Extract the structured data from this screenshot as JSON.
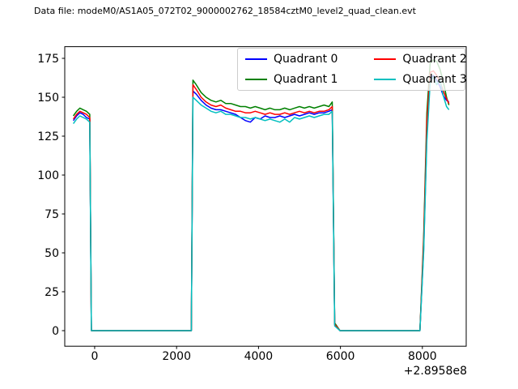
{
  "title": "Data file: modeM0/AS1A05_072T02_9000002762_18584cztM0_level2_quad_clean.evt",
  "chart_data": {
    "type": "line",
    "title": "Data file: modeM0/AS1A05_072T02_9000002762_18584cztM0_level2_quad_clean.evt",
    "xlabel": "",
    "ylabel": "",
    "x_offset_label": "+2.8958e8",
    "xlim": [
      -730,
      9070
    ],
    "ylim": [
      -10,
      182.5
    ],
    "xticks": [
      0,
      2000,
      4000,
      6000,
      8000
    ],
    "yticks": [
      0,
      25,
      50,
      75,
      100,
      125,
      150,
      175
    ],
    "grid": false,
    "legend_position": "upper right",
    "legend_columns": 2,
    "x": [
      -520,
      -440,
      -360,
      -280,
      -200,
      -120,
      -80,
      300,
      700,
      1100,
      1500,
      1900,
      2300,
      2360,
      2400,
      2480,
      2600,
      2720,
      2840,
      2960,
      3080,
      3200,
      3320,
      3440,
      3560,
      3680,
      3800,
      3920,
      4040,
      4160,
      4280,
      4400,
      4520,
      4640,
      4760,
      4880,
      5000,
      5120,
      5240,
      5360,
      5480,
      5600,
      5720,
      5800,
      5860,
      5990,
      6300,
      6700,
      7100,
      7500,
      7940,
      8030,
      8110,
      8190,
      8270,
      8350,
      8430,
      8510,
      8590,
      8650
    ],
    "series": [
      {
        "name": "Quadrant 0",
        "color": "#0000ff",
        "values": [
          135,
          138,
          140,
          139,
          137,
          136,
          0,
          0,
          0,
          0,
          0,
          0,
          0,
          0,
          154,
          152,
          148,
          145,
          143,
          142,
          142,
          141,
          140,
          139,
          137,
          135,
          134,
          137,
          136,
          138,
          137,
          137,
          138,
          137,
          138,
          139,
          138,
          139,
          140,
          139,
          140,
          140,
          141,
          142,
          4,
          0,
          0,
          0,
          0,
          0,
          0,
          52,
          126,
          162,
          164,
          161,
          157,
          151,
          148,
          147
        ]
      },
      {
        "name": "Quadrant 1",
        "color": "#008000",
        "values": [
          138,
          141,
          143,
          142,
          141,
          139,
          0,
          0,
          0,
          0,
          0,
          0,
          0,
          0,
          161,
          158,
          153,
          150,
          148,
          147,
          148,
          146,
          146,
          145,
          144,
          144,
          143,
          144,
          143,
          142,
          143,
          142,
          142,
          143,
          142,
          143,
          144,
          143,
          144,
          143,
          144,
          145,
          144,
          147,
          5,
          0,
          0,
          0,
          0,
          0,
          0,
          60,
          140,
          172,
          174,
          173,
          168,
          160,
          150,
          145
        ]
      },
      {
        "name": "Quadrant 2",
        "color": "#ff0000",
        "values": [
          136,
          139,
          141,
          140,
          139,
          137,
          0,
          0,
          0,
          0,
          0,
          0,
          0,
          0,
          158,
          155,
          150,
          147,
          145,
          144,
          145,
          143,
          142,
          141,
          141,
          140,
          140,
          141,
          140,
          139,
          140,
          139,
          139,
          140,
          139,
          140,
          141,
          140,
          141,
          140,
          141,
          141,
          142,
          144,
          4,
          0,
          0,
          0,
          0,
          0,
          0,
          57,
          134,
          166,
          167,
          164,
          160,
          154,
          149,
          146
        ]
      },
      {
        "name": "Quadrant 3",
        "color": "#00bfbf",
        "values": [
          133,
          136,
          138,
          137,
          136,
          134,
          0,
          0,
          0,
          0,
          0,
          0,
          0,
          0,
          150,
          148,
          145,
          143,
          141,
          140,
          141,
          139,
          139,
          138,
          137,
          137,
          136,
          137,
          136,
          135,
          136,
          135,
          134,
          136,
          134,
          137,
          136,
          137,
          138,
          137,
          138,
          139,
          139,
          141,
          3,
          0,
          0,
          0,
          0,
          0,
          0,
          50,
          122,
          160,
          163,
          158,
          161,
          151,
          144,
          142
        ]
      }
    ]
  }
}
